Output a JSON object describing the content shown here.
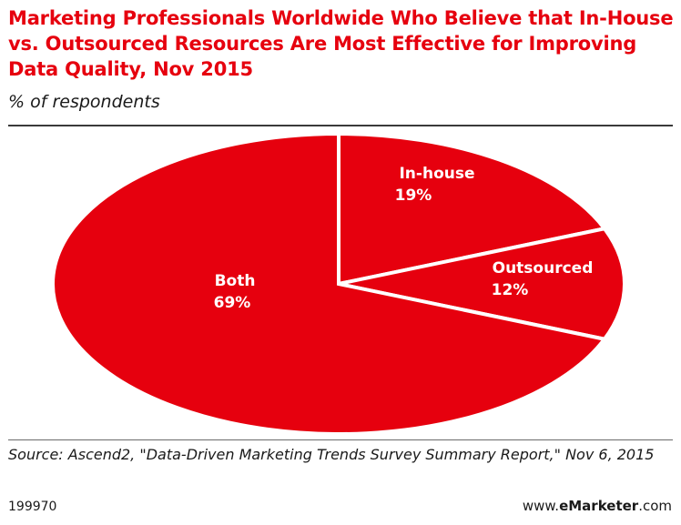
{
  "header": {
    "title": "Marketing Professionals Worldwide Who Believe that In-House vs. Outsourced Resources Are Most Effective for Improving Data Quality, Nov 2015",
    "subtitle": "% of respondents"
  },
  "chart_data": {
    "type": "pie",
    "title": "Marketing Professionals Worldwide Who Believe that In-House vs. Outsourced Resources Are Most Effective for Improving Data Quality, Nov 2015",
    "subtitle": "% of respondents",
    "categories": [
      "In-house",
      "Outsourced",
      "Both"
    ],
    "values": [
      19,
      12,
      69
    ],
    "labels": [
      "19%",
      "12%",
      "69%"
    ],
    "color": "#e6000e",
    "separator_color": "#ffffff"
  },
  "footer": {
    "source": "Source: Ascend2, \"Data-Driven Marketing Trends Survey Summary Report,\" Nov 6, 2015",
    "id": "199970",
    "brand_prefix": "www.",
    "brand_name": "eMarketer",
    "brand_suffix": ".com"
  }
}
